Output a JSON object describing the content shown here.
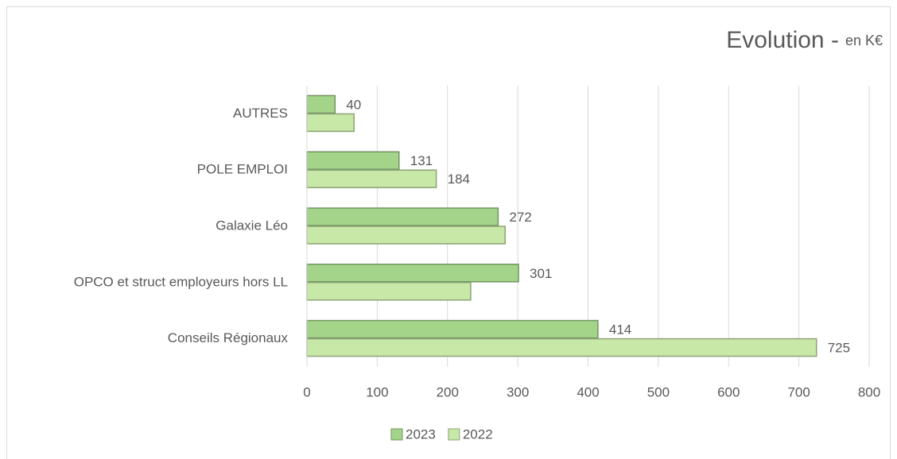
{
  "chart_data": {
    "type": "bar",
    "orientation": "horizontal",
    "title": "Evolution -",
    "subtitle": "en K€",
    "categories": [
      "AUTRES",
      "POLE EMPLOI",
      "Galaxie Léo",
      "OPCO et struct employeurs hors LL",
      "Conseils Régionaux"
    ],
    "series": [
      {
        "name": "2023",
        "color": "#a3d48a",
        "values": [
          40,
          131,
          272,
          301,
          414
        ]
      },
      {
        "name": "2022",
        "color": "#c8e8a8",
        "values": [
          67,
          184,
          282,
          233,
          725
        ],
        "value_labels": [
          null,
          "184",
          null,
          null,
          "725"
        ]
      }
    ],
    "xlim": [
      0,
      800
    ],
    "xticks": [
      0,
      100,
      200,
      300,
      400,
      500,
      600,
      700,
      800
    ],
    "grid": true,
    "legend": "bottom"
  }
}
